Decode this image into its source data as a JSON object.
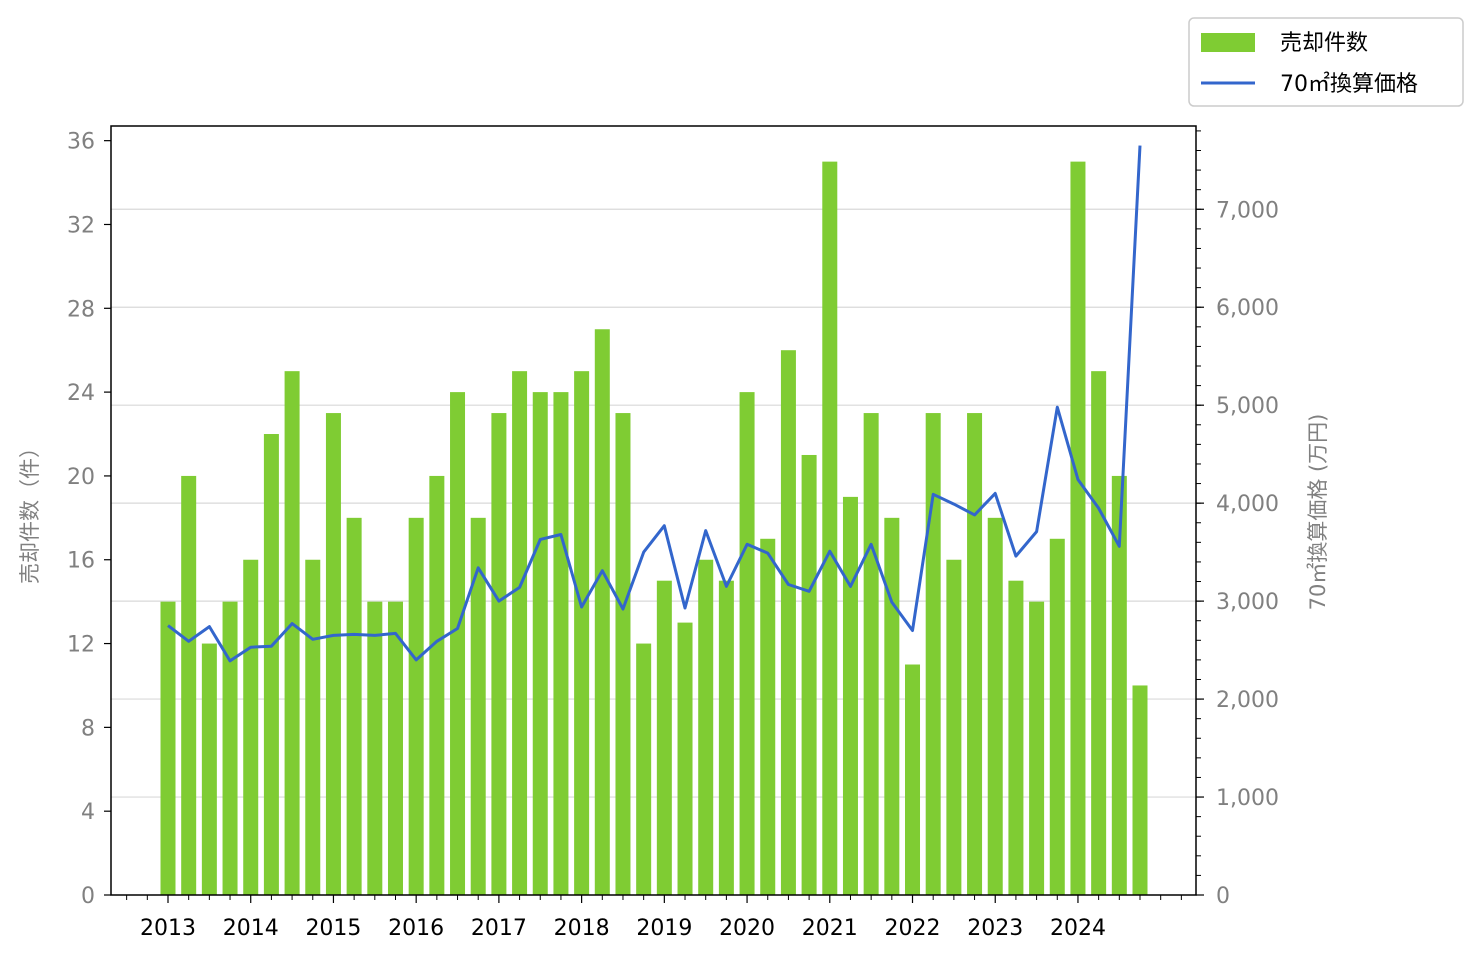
{
  "chart_data": {
    "type": "bar",
    "x_tick_labels": [
      "2013",
      "2014",
      "2015",
      "2016",
      "2017",
      "2018",
      "2019",
      "2020",
      "2021",
      "2022",
      "2023",
      "2024"
    ],
    "left_axis": {
      "label": "売却件数（件）",
      "ylim": [
        0,
        36.7
      ],
      "ticks": [
        0,
        4,
        8,
        12,
        16,
        20,
        24,
        28,
        32,
        36
      ]
    },
    "right_axis": {
      "label": "70㎡換算価格 (万円)",
      "ylim": [
        0,
        7850
      ],
      "ticks": [
        0,
        1000,
        2000,
        3000,
        4000,
        5000,
        6000,
        7000
      ],
      "tick_labels": [
        "0",
        "1,000",
        "2,000",
        "3,000",
        "4,000",
        "5,000",
        "6,000",
        "7,000"
      ]
    },
    "series": [
      {
        "name": "売却件数",
        "type": "bar",
        "axis": "left",
        "color": "#7fcc33",
        "values": [
          14,
          20,
          12,
          14,
          16,
          22,
          25,
          16,
          23,
          18,
          14,
          14,
          18,
          20,
          24,
          18,
          23,
          25,
          24,
          24,
          25,
          27,
          23,
          12,
          15,
          13,
          16,
          15,
          24,
          17,
          26,
          21,
          35,
          19,
          23,
          18,
          11,
          23,
          16,
          23,
          18,
          15,
          14,
          17,
          35,
          25,
          20,
          10
        ]
      },
      {
        "name": "70㎡換算価格",
        "type": "line",
        "axis": "right",
        "color": "#3366cc",
        "values": [
          2750,
          2590,
          2740,
          2390,
          2530,
          2540,
          2770,
          2610,
          2650,
          2660,
          2650,
          2670,
          2400,
          2590,
          2720,
          3340,
          3000,
          3140,
          3630,
          3680,
          2940,
          3310,
          2920,
          3500,
          3770,
          2930,
          3720,
          3150,
          3580,
          3490,
          3170,
          3100,
          3510,
          3150,
          3580,
          2990,
          2700,
          4090,
          3990,
          3880,
          4100,
          3460,
          3710,
          4980,
          4240,
          3950,
          3560,
          7650
        ]
      }
    ],
    "grid": "horizontal (right axis)",
    "legend": {
      "placement": "top-right, outside plot",
      "entries": [
        "売却件数",
        "70㎡換算価格"
      ]
    }
  }
}
